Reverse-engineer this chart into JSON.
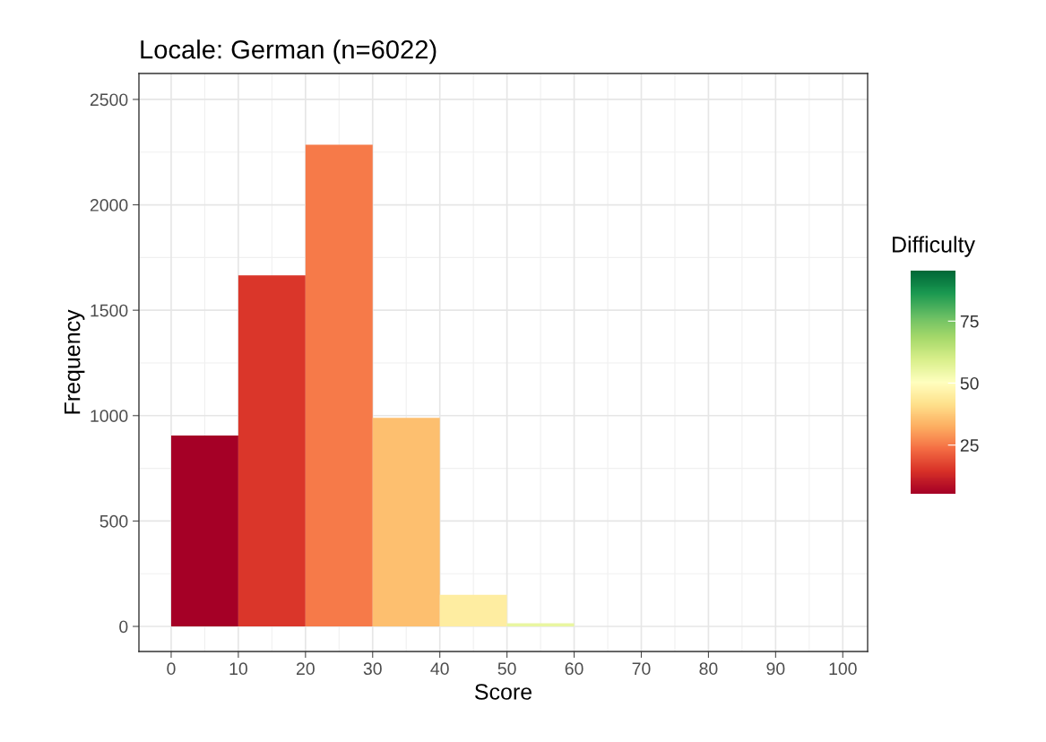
{
  "chart_data": {
    "type": "histogram",
    "title": "Locale: German (n=6022)",
    "xlabel": "Score",
    "ylabel": "Frequency",
    "clabel": "Difficulty",
    "bins": [
      0,
      10,
      20,
      30,
      40,
      50,
      60
    ],
    "values": [
      905,
      1665,
      2285,
      990,
      150,
      15
    ],
    "cvalues": [
      5,
      15,
      25,
      35,
      45,
      55
    ],
    "clim": [
      5,
      95
    ],
    "cticks": [
      25,
      50,
      75
    ],
    "xlim": [
      -4.8,
      103.7
    ],
    "xticks": [
      0,
      10,
      20,
      30,
      40,
      50,
      60,
      70,
      80,
      90,
      100
    ],
    "ylim": [
      -119,
      2623
    ],
    "yticks": [
      0,
      500,
      1000,
      1500,
      2000,
      2500
    ],
    "grid": true
  }
}
